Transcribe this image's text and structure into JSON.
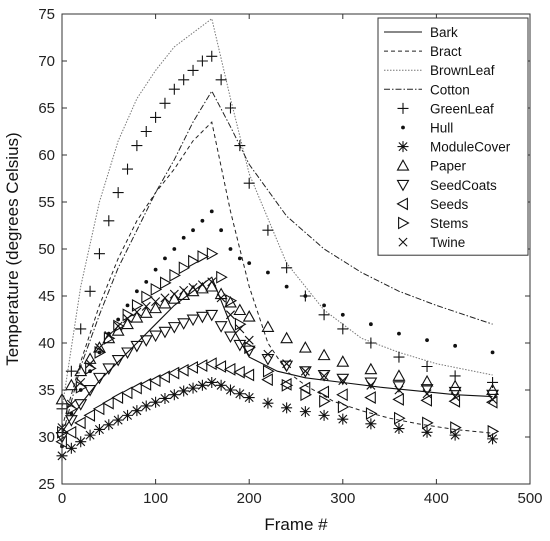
{
  "chart_data": {
    "type": "line",
    "title": "",
    "xlabel": "Frame #",
    "ylabel": "Temperature (degrees Celsius)",
    "xlim": [
      0,
      500
    ],
    "ylim": [
      25,
      75
    ],
    "xticks": [
      0,
      100,
      200,
      300,
      400,
      500
    ],
    "yticks": [
      25,
      30,
      35,
      40,
      45,
      50,
      55,
      60,
      65,
      70,
      75
    ],
    "grid": false,
    "legend_position": "top-right",
    "series": [
      {
        "name": "Bark",
        "style": "solid",
        "x": [
          0,
          20,
          40,
          60,
          80,
          100,
          120,
          140,
          160,
          180,
          200,
          230,
          260,
          300,
          340,
          380,
          420,
          460
        ],
        "y": [
          30.5,
          33.5,
          36.0,
          38.0,
          40.0,
          42.0,
          44.0,
          45.5,
          47.0,
          42.0,
          38.5,
          37.0,
          36.3,
          35.8,
          35.3,
          34.9,
          34.5,
          34.3
        ]
      },
      {
        "name": "Bract",
        "style": "dashed",
        "x": [
          0,
          20,
          40,
          60,
          80,
          100,
          120,
          140,
          160,
          180,
          200,
          220,
          240,
          260,
          290,
          320,
          350,
          380,
          420,
          460
        ],
        "y": [
          31.0,
          38.0,
          44.0,
          49.0,
          53.0,
          56.0,
          58.5,
          61.5,
          63.5,
          54.0,
          46.0,
          40.0,
          37.0,
          35.5,
          33.8,
          32.8,
          32.0,
          31.4,
          30.8,
          30.4
        ]
      },
      {
        "name": "BrownLeaf",
        "style": "dotted-thin",
        "x": [
          0,
          20,
          40,
          60,
          80,
          100,
          120,
          140,
          160,
          180,
          200,
          240,
          280,
          320,
          360,
          400,
          460
        ],
        "y": [
          33.0,
          46.0,
          55.0,
          61.5,
          66.0,
          69.0,
          71.5,
          73.0,
          74.5,
          66.0,
          58.0,
          48.5,
          43.5,
          40.5,
          39.0,
          37.8,
          36.6
        ]
      },
      {
        "name": "Cotton",
        "style": "dash-dot",
        "x": [
          0,
          20,
          40,
          60,
          80,
          100,
          120,
          140,
          160,
          180,
          200,
          240,
          280,
          320,
          360,
          400,
          460
        ],
        "y": [
          30.0,
          37.5,
          43.0,
          48.0,
          52.0,
          56.0,
          59.5,
          63.5,
          66.8,
          63.0,
          59.0,
          53.5,
          50.0,
          47.5,
          45.5,
          44.0,
          42.0
        ]
      },
      {
        "name": "GreenLeaf",
        "marker": "+",
        "x": [
          0,
          10,
          20,
          30,
          40,
          50,
          60,
          70,
          80,
          90,
          100,
          110,
          120,
          130,
          140,
          150,
          160,
          170,
          180,
          190,
          200,
          220,
          240,
          260,
          280,
          300,
          330,
          360,
          390,
          420,
          460
        ],
        "y": [
          33.0,
          37.0,
          41.5,
          45.5,
          49.5,
          53.0,
          56.0,
          58.5,
          61.0,
          62.5,
          64.0,
          65.5,
          67.0,
          68.0,
          69.0,
          70.0,
          70.5,
          68.0,
          65.0,
          61.0,
          57.0,
          52.0,
          48.0,
          45.0,
          43.0,
          41.5,
          40.0,
          38.5,
          37.5,
          36.5,
          35.8
        ]
      },
      {
        "name": "Hull",
        "marker": "dot",
        "x": [
          0,
          10,
          20,
          30,
          40,
          50,
          60,
          70,
          80,
          90,
          100,
          110,
          120,
          130,
          140,
          150,
          160,
          170,
          180,
          190,
          200,
          220,
          240,
          260,
          280,
          300,
          330,
          360,
          390,
          420,
          460
        ],
        "y": [
          29.0,
          32.5,
          35.0,
          37.0,
          39.0,
          41.0,
          42.5,
          44.0,
          45.5,
          46.5,
          47.8,
          49.0,
          50.0,
          51.2,
          52.0,
          53.0,
          54.0,
          52.0,
          50.0,
          49.0,
          48.5,
          47.5,
          46.0,
          45.0,
          44.0,
          43.0,
          42.0,
          41.0,
          40.3,
          39.7,
          39.0
        ]
      },
      {
        "name": "ModuleCover",
        "marker": "*",
        "x": [
          0,
          10,
          20,
          30,
          40,
          50,
          60,
          70,
          80,
          90,
          100,
          110,
          120,
          130,
          140,
          150,
          160,
          170,
          180,
          190,
          200,
          220,
          240,
          260,
          280,
          300,
          330,
          360,
          390,
          420,
          460
        ],
        "y": [
          28.0,
          28.8,
          29.5,
          30.2,
          30.8,
          31.3,
          31.8,
          32.3,
          32.8,
          33.3,
          33.7,
          34.1,
          34.5,
          34.9,
          35.2,
          35.5,
          35.8,
          35.5,
          35.0,
          34.6,
          34.2,
          33.6,
          33.1,
          32.7,
          32.3,
          31.9,
          31.4,
          30.9,
          30.5,
          30.2,
          29.8
        ]
      },
      {
        "name": "Paper",
        "marker": "triangle-up",
        "x": [
          0,
          10,
          20,
          30,
          40,
          50,
          60,
          70,
          80,
          90,
          100,
          110,
          120,
          130,
          140,
          150,
          160,
          170,
          180,
          190,
          200,
          220,
          240,
          260,
          280,
          300,
          330,
          360,
          390,
          420,
          460
        ],
        "y": [
          34.0,
          35.5,
          37.0,
          38.3,
          39.5,
          40.5,
          41.3,
          42.0,
          42.7,
          43.2,
          43.7,
          44.2,
          44.7,
          45.1,
          45.5,
          45.8,
          46.0,
          45.2,
          44.3,
          43.5,
          42.8,
          41.7,
          40.5,
          39.5,
          38.7,
          38.0,
          37.2,
          36.5,
          35.9,
          35.4,
          35.0
        ]
      },
      {
        "name": "SeedCoats",
        "marker": "triangle-down",
        "x": [
          0,
          10,
          20,
          30,
          40,
          50,
          60,
          70,
          80,
          90,
          100,
          110,
          120,
          130,
          140,
          150,
          160,
          170,
          180,
          190,
          200,
          220,
          240,
          260,
          280,
          300,
          330,
          360,
          390,
          420,
          460
        ],
        "y": [
          30.0,
          31.8,
          33.5,
          35.0,
          36.3,
          37.3,
          38.2,
          39.0,
          39.7,
          40.3,
          40.8,
          41.2,
          41.7,
          42.1,
          42.5,
          42.8,
          43.0,
          41.8,
          40.7,
          39.8,
          39.2,
          38.3,
          37.6,
          37.0,
          36.6,
          36.2,
          35.8,
          35.4,
          35.1,
          34.8,
          34.5
        ]
      },
      {
        "name": "Seeds",
        "marker": "triangle-left",
        "x": [
          0,
          10,
          20,
          30,
          40,
          50,
          60,
          70,
          80,
          90,
          100,
          110,
          120,
          130,
          140,
          150,
          160,
          170,
          180,
          190,
          200,
          220,
          240,
          260,
          280,
          300,
          330,
          360,
          390,
          420,
          460
        ],
        "y": [
          29.5,
          30.5,
          31.5,
          32.3,
          33.0,
          33.6,
          34.2,
          34.7,
          35.2,
          35.6,
          36.0,
          36.4,
          36.8,
          37.1,
          37.4,
          37.6,
          37.8,
          37.5,
          37.2,
          36.9,
          36.6,
          36.1,
          35.6,
          35.2,
          34.8,
          34.5,
          34.2,
          34.0,
          33.9,
          33.8,
          33.7
        ]
      },
      {
        "name": "Stems",
        "marker": "triangle-right",
        "x": [
          0,
          10,
          20,
          30,
          40,
          50,
          60,
          70,
          80,
          90,
          100,
          110,
          120,
          130,
          140,
          150,
          160,
          170,
          180,
          190,
          200,
          220,
          240,
          260,
          280,
          300,
          330,
          360,
          390,
          420,
          460
        ],
        "y": [
          30.5,
          33.0,
          35.3,
          37.3,
          39.0,
          40.5,
          41.8,
          43.0,
          44.0,
          44.9,
          45.7,
          46.4,
          47.2,
          48.0,
          48.7,
          49.2,
          49.5,
          47.0,
          44.5,
          42.0,
          39.5,
          37.0,
          35.5,
          34.5,
          33.8,
          33.2,
          32.5,
          32.0,
          31.5,
          31.0,
          30.6
        ]
      },
      {
        "name": "Twine",
        "marker": "x",
        "x": [
          0,
          10,
          20,
          30,
          40,
          50,
          60,
          70,
          80,
          90,
          100,
          110,
          120,
          130,
          140,
          150,
          160,
          170,
          180,
          190,
          200,
          220,
          240,
          260,
          280,
          300,
          330,
          360,
          390,
          420,
          460
        ],
        "y": [
          31.0,
          33.5,
          35.8,
          37.8,
          39.5,
          40.8,
          41.8,
          42.6,
          43.3,
          43.9,
          44.4,
          44.8,
          45.2,
          45.6,
          45.9,
          46.2,
          46.5,
          44.8,
          43.0,
          41.5,
          40.3,
          38.8,
          37.8,
          37.0,
          36.5,
          36.0,
          35.5,
          35.0,
          34.6,
          34.3,
          34.0
        ]
      }
    ]
  }
}
